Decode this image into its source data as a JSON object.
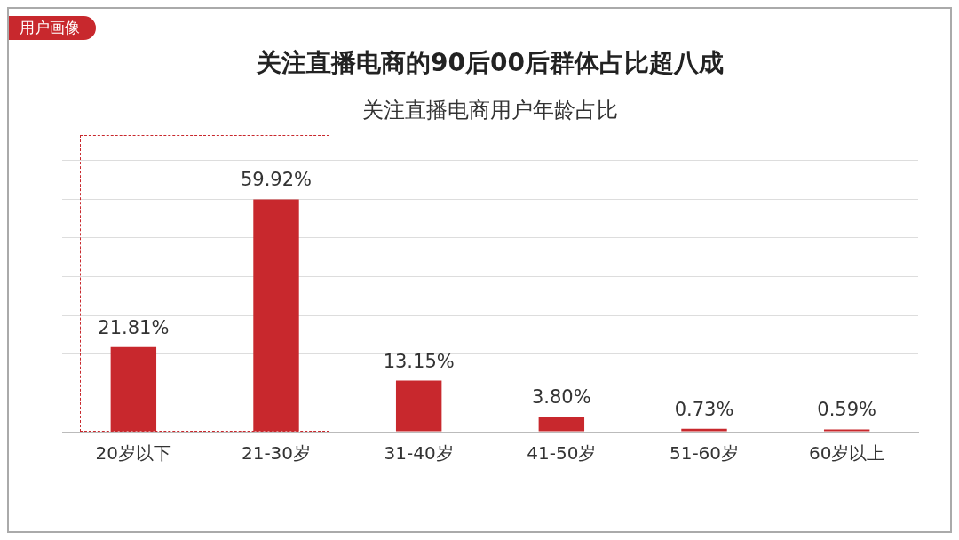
{
  "chart_data": {
    "type": "bar",
    "title": "关注直播电商的90后00后群体占比超八成",
    "subtitle": "关注直播电商用户年龄占比",
    "annotations": [
      "用户画像"
    ],
    "categories": [
      "20岁以下",
      "21-30岁",
      "31-40岁",
      "41-50岁",
      "51-60岁",
      "60岁以上"
    ],
    "values": [
      21.81,
      59.92,
      13.15,
      3.8,
      0.73,
      0.59
    ],
    "value_labels": [
      "21.81%",
      "59.92%",
      "13.15%",
      "3.80%",
      "0.73%",
      "0.59%"
    ],
    "color": "#c8282d",
    "ylim": [
      0,
      70
    ],
    "yticks": [
      {
        "value": 0,
        "label": null
      },
      {
        "value": 10,
        "label": null
      },
      {
        "value": 20,
        "label": null
      },
      {
        "value": 30,
        "label": null
      },
      {
        "value": 40,
        "label": null
      },
      {
        "value": 50,
        "label": null
      },
      {
        "value": 60,
        "label": null
      },
      {
        "value": 70,
        "label": null
      }
    ],
    "tick_labels": "x",
    "grid": "y",
    "legend": false
  }
}
